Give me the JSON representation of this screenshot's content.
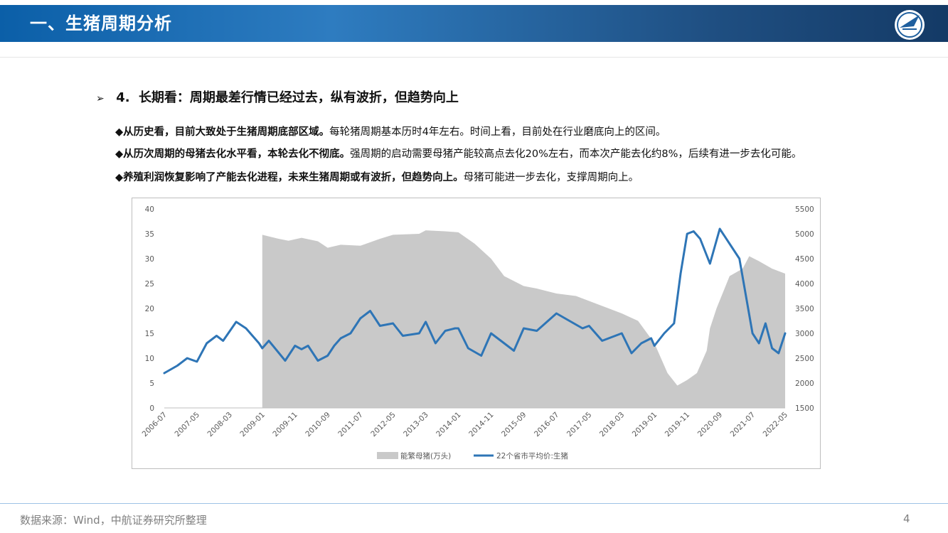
{
  "header": {
    "title": "一、生猪周期分析"
  },
  "subtitle": {
    "arrow": "➢",
    "number": "4.",
    "text": "长期看：周期最差行情已经过去，纵有波折，但趋势向上"
  },
  "bullets": [
    {
      "marker": "◆",
      "bold": "从历史看，目前大致处于生猪周期底部区域。",
      "rest": "每轮猪周期基本历时4年左右。时间上看，目前处在行业磨底向上的区间。"
    },
    {
      "marker": "◆",
      "bold": "从历次周期的母猪去化水平看，本轮去化不彻底。",
      "rest": "强周期的启动需要母猪产能较高点去化20%左右，而本次产能去化约8%，后续有进一步去化可能。"
    },
    {
      "marker": "◆",
      "bold": "养殖利润恢复影响了产能去化进程，未来生猪周期或有波折，但趋势向上。",
      "rest": "母猪可能进一步去化，支撑周期向上。"
    }
  ],
  "chart_data": {
    "type": "line",
    "x_ticks": [
      "2006-07",
      "2007-05",
      "2008-03",
      "2009-01",
      "2009-11",
      "2010-09",
      "2011-07",
      "2012-05",
      "2013-03",
      "2014-01",
      "2014-11",
      "2015-09",
      "2016-07",
      "2017-05",
      "2018-03",
      "2019-01",
      "2019-11",
      "2020-09",
      "2021-07",
      "2022-05"
    ],
    "y_left": {
      "ticks": [
        "0",
        "5",
        "10",
        "15",
        "20",
        "25",
        "30",
        "35",
        "40"
      ],
      "min": 0,
      "max": 40
    },
    "y_right": {
      "ticks": [
        "1500",
        "2000",
        "2500",
        "3000",
        "3500",
        "4000",
        "4500",
        "5000",
        "5500"
      ],
      "min": 1500,
      "max": 5500
    },
    "series": [
      {
        "name": "能繁母猪(万头)",
        "axis": "right",
        "style": "area",
        "color": "#c9c9c9",
        "points": [
          [
            "2009-01",
            4980
          ],
          [
            "2009-06",
            4900
          ],
          [
            "2009-09",
            4860
          ],
          [
            "2010-01",
            4920
          ],
          [
            "2010-06",
            4850
          ],
          [
            "2010-09",
            4720
          ],
          [
            "2011-01",
            4780
          ],
          [
            "2011-07",
            4760
          ],
          [
            "2012-01",
            4900
          ],
          [
            "2012-05",
            4980
          ],
          [
            "2013-01",
            5000
          ],
          [
            "2013-03",
            5070
          ],
          [
            "2013-09",
            5050
          ],
          [
            "2014-01",
            5030
          ],
          [
            "2014-06",
            4800
          ],
          [
            "2014-11",
            4500
          ],
          [
            "2015-03",
            4150
          ],
          [
            "2015-09",
            3950
          ],
          [
            "2016-01",
            3900
          ],
          [
            "2016-07",
            3800
          ],
          [
            "2017-01",
            3750
          ],
          [
            "2017-05",
            3650
          ],
          [
            "2017-11",
            3500
          ],
          [
            "2018-03",
            3400
          ],
          [
            "2018-08",
            3250
          ],
          [
            "2019-01",
            2800
          ],
          [
            "2019-05",
            2200
          ],
          [
            "2019-08",
            1950
          ],
          [
            "2019-11",
            2060
          ],
          [
            "2020-02",
            2200
          ],
          [
            "2020-05",
            2650
          ],
          [
            "2020-06",
            3100
          ],
          [
            "2020-08",
            3500
          ],
          [
            "2020-12",
            4150
          ],
          [
            "2021-04",
            4300
          ],
          [
            "2021-06",
            4550
          ],
          [
            "2021-09",
            4450
          ],
          [
            "2022-01",
            4300
          ],
          [
            "2022-05",
            4200
          ]
        ]
      },
      {
        "name": "22个省市平均价:生猪",
        "axis": "left",
        "style": "line",
        "color": "#2e75b6",
        "points": [
          [
            "2006-07",
            7
          ],
          [
            "2006-11",
            8.5
          ],
          [
            "2007-02",
            10
          ],
          [
            "2007-05",
            9.3
          ],
          [
            "2007-08",
            13
          ],
          [
            "2007-11",
            14.5
          ],
          [
            "2008-01",
            13.5
          ],
          [
            "2008-05",
            17.3
          ],
          [
            "2008-08",
            16
          ],
          [
            "2008-12",
            13
          ],
          [
            "2009-01",
            12
          ],
          [
            "2009-03",
            13.5
          ],
          [
            "2009-08",
            9.5
          ],
          [
            "2009-11",
            12.5
          ],
          [
            "2010-01",
            11.8
          ],
          [
            "2010-03",
            12.5
          ],
          [
            "2010-06",
            9.5
          ],
          [
            "2010-09",
            10.5
          ],
          [
            "2010-11",
            12.5
          ],
          [
            "2011-01",
            14
          ],
          [
            "2011-04",
            15
          ],
          [
            "2011-07",
            18
          ],
          [
            "2011-10",
            19.5
          ],
          [
            "2012-01",
            16.5
          ],
          [
            "2012-05",
            17
          ],
          [
            "2012-08",
            14.5
          ],
          [
            "2013-01",
            15
          ],
          [
            "2013-03",
            17.3
          ],
          [
            "2013-06",
            13
          ],
          [
            "2013-09",
            15.5
          ],
          [
            "2013-12",
            16
          ],
          [
            "2014-01",
            16
          ],
          [
            "2014-04",
            12
          ],
          [
            "2014-08",
            10.5
          ],
          [
            "2014-11",
            15
          ],
          [
            "2015-03",
            13
          ],
          [
            "2015-06",
            11.5
          ],
          [
            "2015-09",
            16
          ],
          [
            "2016-01",
            15.5
          ],
          [
            "2016-07",
            19
          ],
          [
            "2016-11",
            17.5
          ],
          [
            "2017-03",
            16
          ],
          [
            "2017-05",
            16.5
          ],
          [
            "2017-09",
            13.5
          ],
          [
            "2018-01",
            14.5
          ],
          [
            "2018-03",
            15
          ],
          [
            "2018-06",
            11
          ],
          [
            "2018-09",
            13
          ],
          [
            "2018-12",
            14
          ],
          [
            "2019-01",
            12.5
          ],
          [
            "2019-04",
            15
          ],
          [
            "2019-07",
            17
          ],
          [
            "2019-09",
            27
          ],
          [
            "2019-11",
            35
          ],
          [
            "2020-01",
            35.5
          ],
          [
            "2020-03",
            34
          ],
          [
            "2020-06",
            29
          ],
          [
            "2020-09",
            36
          ],
          [
            "2021-01",
            32
          ],
          [
            "2021-03",
            30
          ],
          [
            "2021-07",
            15
          ],
          [
            "2021-09",
            13
          ],
          [
            "2021-11",
            17
          ],
          [
            "2022-01",
            12
          ],
          [
            "2022-03",
            11
          ],
          [
            "2022-05",
            15
          ]
        ]
      }
    ],
    "legend": {
      "placement": "bottom-center"
    },
    "grid": false
  },
  "footer": {
    "source": "数据来源：Wind，中航证券研究所整理",
    "page": "4"
  }
}
